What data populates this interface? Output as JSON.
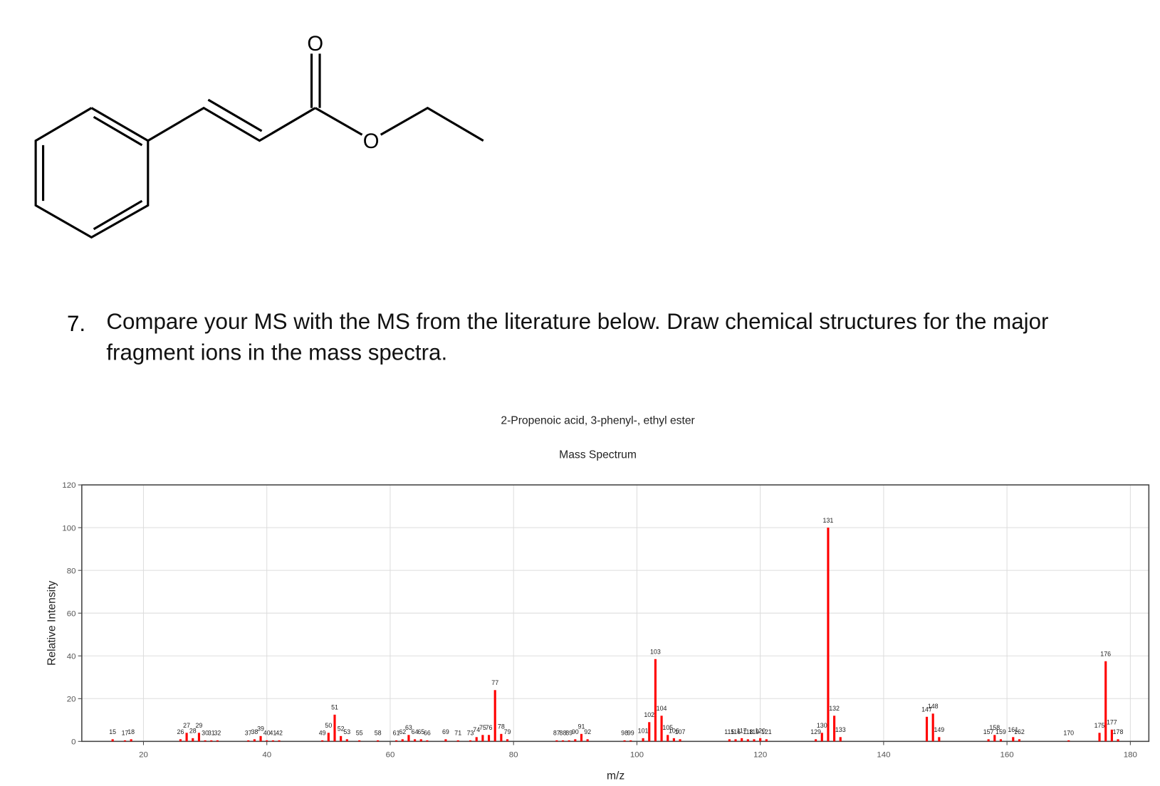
{
  "structure": {
    "atom_labels": [
      "O",
      "O"
    ]
  },
  "question": {
    "number": "7.",
    "text": "Compare your MS with the MS from the literature below. Draw chemical structures for the major fragment ions in the mass spectra."
  },
  "chart_data": {
    "type": "bar",
    "title": "2-Propenoic acid, 3-phenyl-, ethyl ester",
    "subtitle": "Mass Spectrum",
    "x_label": "m/z",
    "y_label": "Relative Intensity",
    "color": "#ff0000",
    "x": [
      15,
      17,
      18,
      26,
      27,
      28,
      29,
      30,
      31,
      32,
      37,
      38,
      39,
      40,
      41,
      42,
      49,
      50,
      51,
      52,
      53,
      55,
      58,
      61,
      62,
      63,
      64,
      65,
      66,
      69,
      71,
      73,
      74,
      75,
      76,
      77,
      78,
      79,
      87,
      88,
      89,
      90,
      91,
      92,
      98,
      99,
      101,
      102,
      103,
      104,
      105,
      106,
      107,
      115,
      116,
      117,
      118,
      119,
      120,
      121,
      129,
      130,
      131,
      132,
      133,
      147,
      148,
      149,
      157,
      158,
      159,
      161,
      162,
      170,
      175,
      176,
      177,
      178
    ],
    "values": [
      1,
      0.5,
      1,
      1,
      4,
      1.5,
      4,
      0.5,
      0.5,
      0.5,
      0.5,
      1,
      2.5,
      0.5,
      0.5,
      0.5,
      0.5,
      4,
      12.5,
      2.5,
      1,
      0.5,
      0.5,
      0.5,
      1,
      3,
      1,
      1,
      0.5,
      1,
      0.5,
      0.5,
      2,
      3,
      3,
      24,
      3.5,
      1,
      0.5,
      0.5,
      0.5,
      1,
      3.5,
      1,
      0.5,
      0.5,
      1.5,
      9,
      38.5,
      12,
      3,
      1.5,
      1,
      1,
      1,
      1.5,
      1,
      1,
      1.5,
      1,
      1,
      4,
      100,
      12,
      2,
      11.5,
      13,
      2,
      1,
      3,
      1,
      2,
      1,
      0.5,
      4,
      37.5,
      5.5,
      1
    ],
    "xlim": [
      10,
      183
    ],
    "ylim": [
      0,
      120
    ],
    "xticks": [
      20,
      40,
      60,
      80,
      100,
      120,
      140,
      160,
      180
    ],
    "yticks": [
      0,
      20,
      40,
      60,
      80,
      100,
      120
    ],
    "grid": true
  }
}
